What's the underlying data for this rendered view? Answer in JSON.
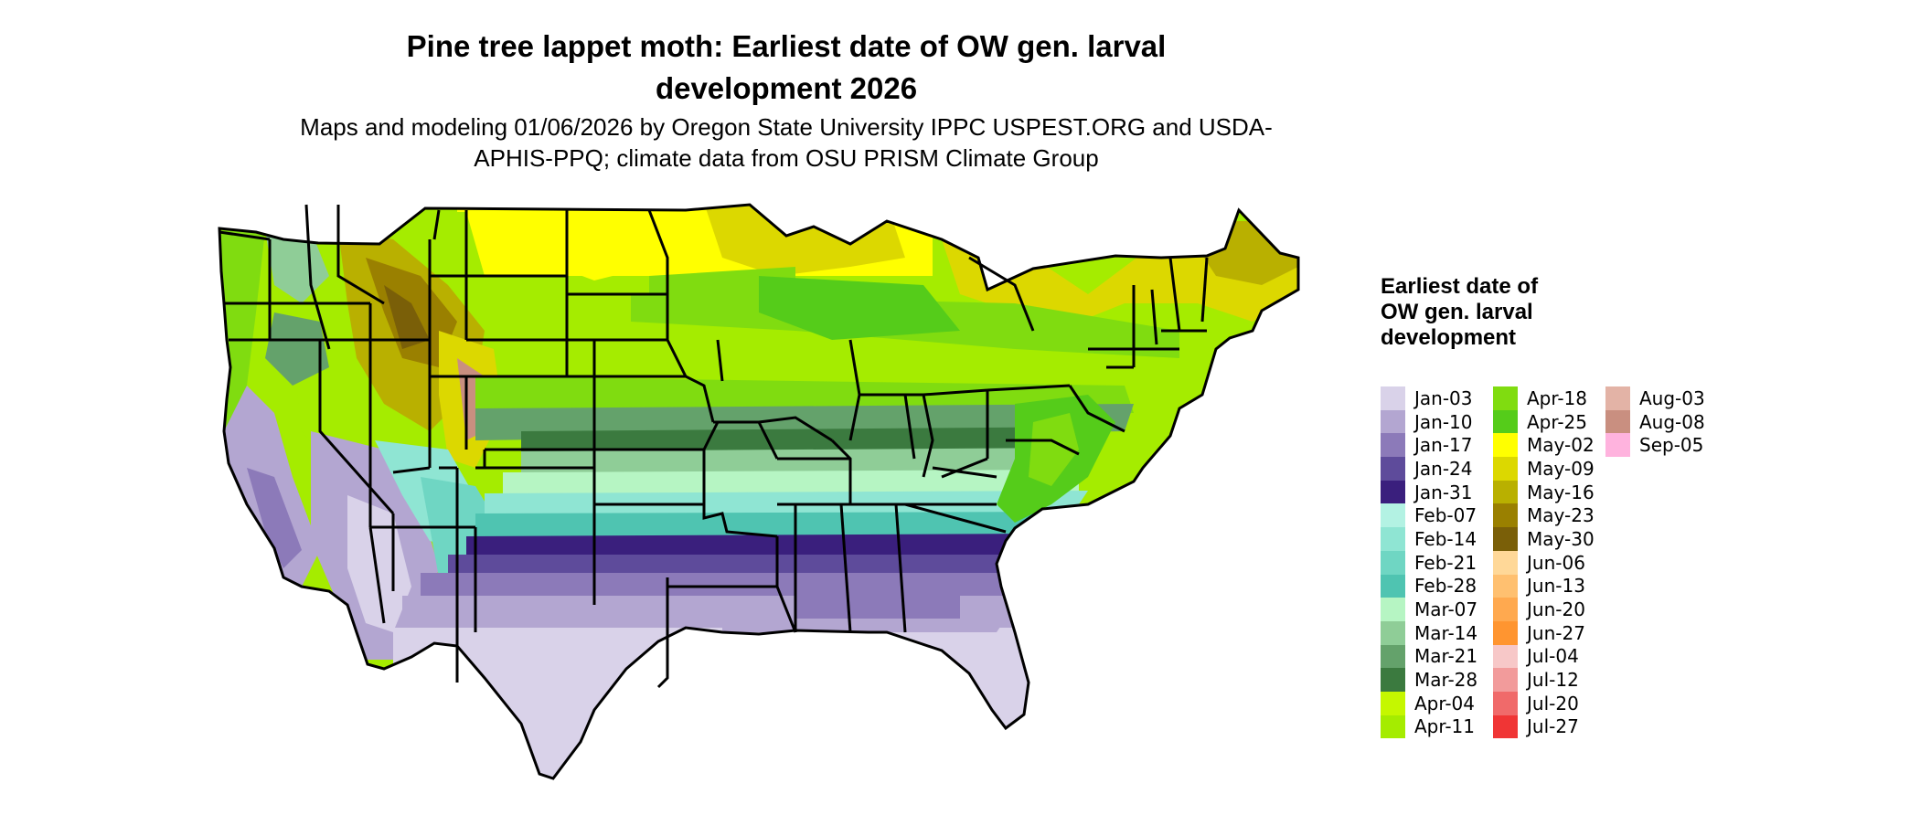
{
  "title": "Pine tree lappet moth: Earliest date of OW gen. larval development 2026",
  "subtitle": "Maps and modeling 01/06/2026 by Oregon State University IPPC USPEST.ORG and USDA-APHIS-PPQ; climate data from OSU PRISM Climate Group",
  "legend": {
    "title": "Earliest date of OW gen. larval development",
    "columns": [
      [
        {
          "label": "Jan-03",
          "color": "#d9d2e9"
        },
        {
          "label": "Jan-10",
          "color": "#b3a6d1"
        },
        {
          "label": "Jan-17",
          "color": "#8c7ab9"
        },
        {
          "label": "Jan-24",
          "color": "#5e4b9b"
        },
        {
          "label": "Jan-31",
          "color": "#3a1f7d"
        },
        {
          "label": "Feb-07",
          "color": "#b3f2e3"
        },
        {
          "label": "Feb-14",
          "color": "#8fe5d3"
        },
        {
          "label": "Feb-21",
          "color": "#6fd6c3"
        },
        {
          "label": "Feb-28",
          "color": "#4fc4b1"
        },
        {
          "label": "Mar-07",
          "color": "#b6f5c3"
        },
        {
          "label": "Mar-14",
          "color": "#8fcd97"
        },
        {
          "label": "Mar-21",
          "color": "#64a26b"
        },
        {
          "label": "Mar-28",
          "color": "#3b7a3f"
        },
        {
          "label": "Apr-04",
          "color": "#c5f700"
        },
        {
          "label": "Apr-11",
          "color": "#a5ec00"
        }
      ],
      [
        {
          "label": "Apr-18",
          "color": "#80dc10"
        },
        {
          "label": "Apr-25",
          "color": "#55cc1a"
        },
        {
          "label": "May-02",
          "color": "#ffff00"
        },
        {
          "label": "May-09",
          "color": "#dcd800"
        },
        {
          "label": "May-16",
          "color": "#b9b000"
        },
        {
          "label": "May-23",
          "color": "#9a8000"
        },
        {
          "label": "May-30",
          "color": "#7a5f08"
        },
        {
          "label": "Jun-06",
          "color": "#ffd898"
        },
        {
          "label": "Jun-13",
          "color": "#ffc070"
        },
        {
          "label": "Jun-20",
          "color": "#ffa94f"
        },
        {
          "label": "Jun-27",
          "color": "#ff9530"
        },
        {
          "label": "Jul-04",
          "color": "#f7c8c8"
        },
        {
          "label": "Jul-12",
          "color": "#f29b9b"
        },
        {
          "label": "Jul-20",
          "color": "#f06a6a"
        },
        {
          "label": "Jul-27",
          "color": "#f03535"
        }
      ],
      [
        {
          "label": "Aug-03",
          "color": "#e3b3a6"
        },
        {
          "label": "Aug-08",
          "color": "#c98f80"
        },
        {
          "label": "Sep-05",
          "color": "#ffb3de"
        }
      ]
    ]
  }
}
